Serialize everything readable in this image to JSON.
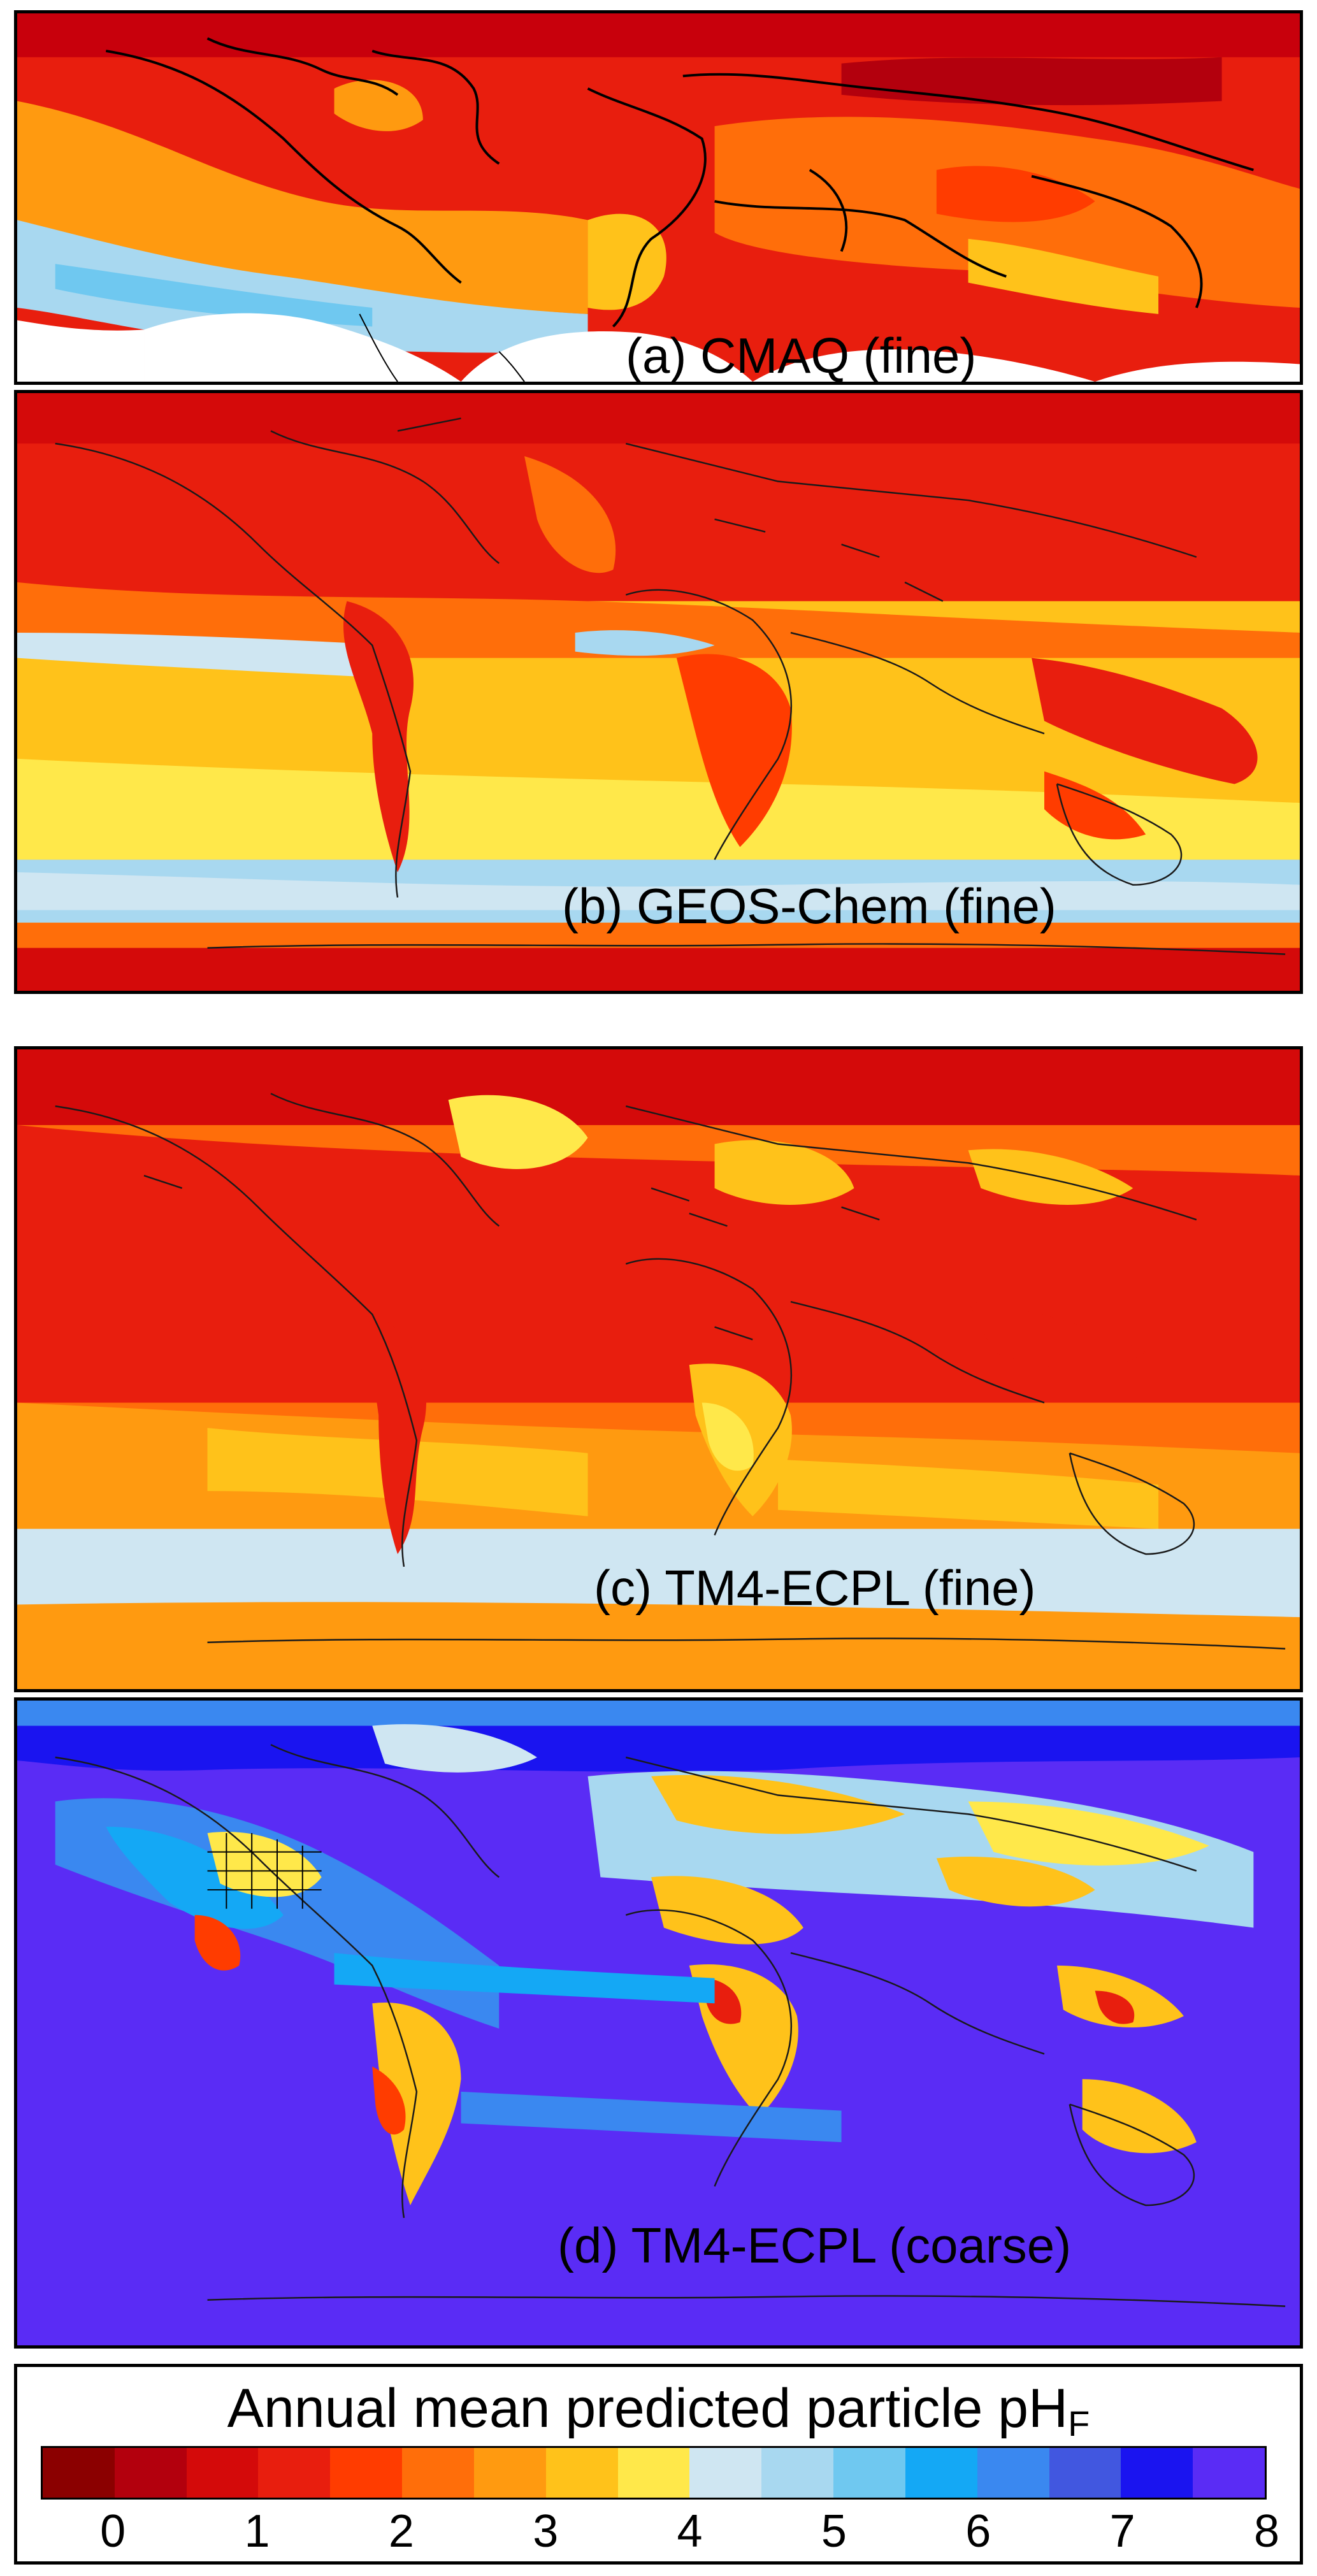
{
  "panels": [
    {
      "id": "a",
      "label": "(a) CMAQ (fine)",
      "style": "cmaq"
    },
    {
      "id": "b",
      "label": "(b) GEOS-Chem (fine)",
      "style": "geos"
    },
    {
      "id": "c",
      "label": "(c) TM4-ECPL (fine)",
      "style": "tm4fine"
    },
    {
      "id": "d",
      "label": "(d) TM4-ECPL (coarse)",
      "style": "tm4coarse"
    }
  ],
  "legend": {
    "title_main": "Annual mean predicted particle pH",
    "title_sub": "F",
    "ticks": [
      "0",
      "1",
      "2",
      "3",
      "4",
      "5",
      "6",
      "7",
      "8"
    ],
    "min": 0,
    "max": 8,
    "colors": [
      "#8b0000",
      "#b3000d",
      "#d40a0a",
      "#e81e0e",
      "#ff3c00",
      "#ff6e0a",
      "#ff9a10",
      "#ffc21a",
      "#ffe84a",
      "#cfe6f2",
      "#a8d8f0",
      "#6fc8f0",
      "#14a8f5",
      "#3a88f0",
      "#4157e0",
      "#1a14f0",
      "#5a2cf5"
    ]
  },
  "map_data": {
    "variable": "Annual mean predicted particle pH_F",
    "panel_summaries": {
      "a": "fine-mode pH mostly 1-3 over land and northern oceans; 4-5 over subtropical oceans; regional domain",
      "b": "fine-mode pH 1-3 over continents and polar regions; 3-5 over tropical/southern oceans",
      "c": "fine-mode pH 1-3 over most regions; 4 band over Southern Ocean; 3 over Antarctica",
      "d": "coarse-mode pH 7-8 over oceans; 2-5 over continents"
    }
  }
}
